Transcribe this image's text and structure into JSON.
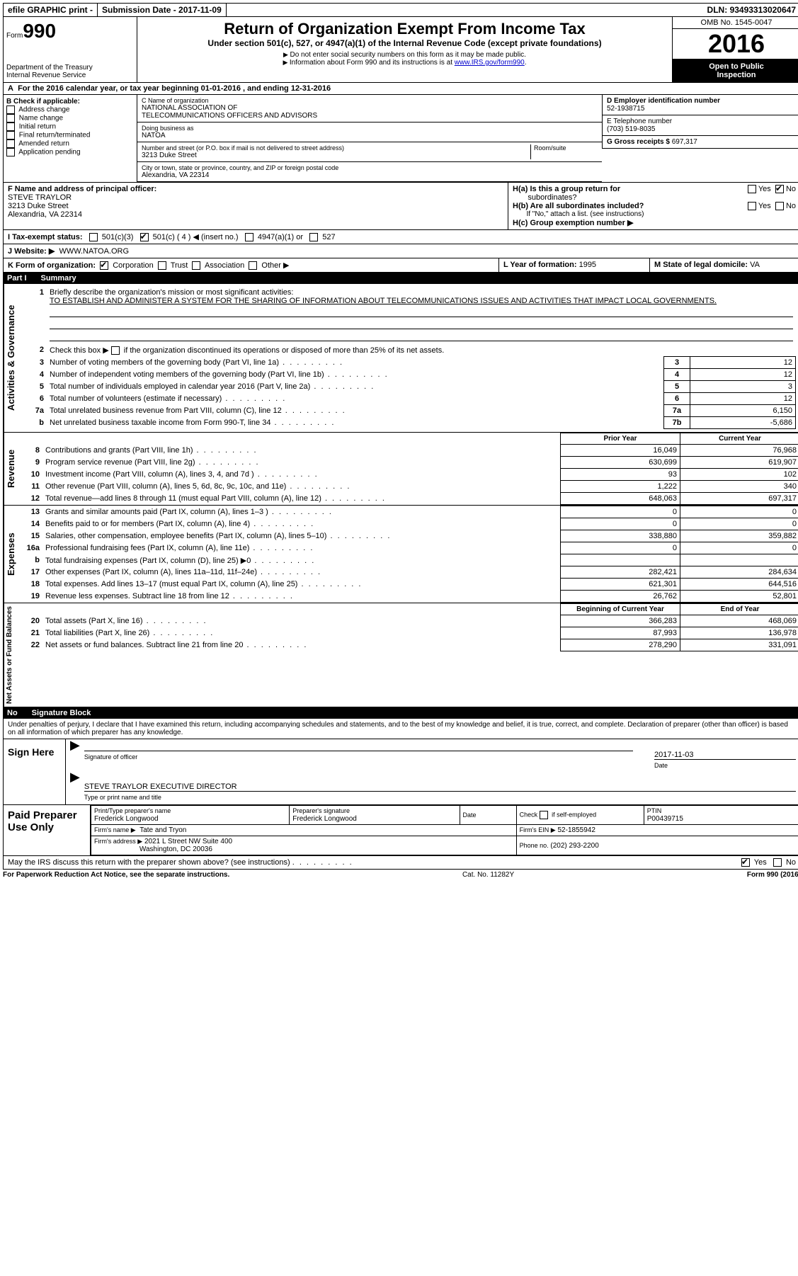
{
  "topbar": {
    "efile": "efile GRAPHIC print -",
    "submission_label": "Submission Date -",
    "submission_date": "2017-11-09",
    "dln_label": "DLN:",
    "dln": "93493313020647"
  },
  "header": {
    "form_label": "Form",
    "form_no": "990",
    "dept1": "Department of the Treasury",
    "dept2": "Internal Revenue Service",
    "title": "Return of Organization Exempt From Income Tax",
    "subtitle": "Under section 501(c), 527, or 4947(a)(1) of the Internal Revenue Code (except private foundations)",
    "note1": "Do not enter social security numbers on this form as it may be made public.",
    "note2": "Information about Form 990 and its instructions is at ",
    "note2_link": "www.IRS.gov/form990",
    "omb": "OMB No. 1545-0047",
    "year": "2016",
    "open1": "Open to Public",
    "open2": "Inspection"
  },
  "section_a": "For the 2016 calendar year, or tax year beginning 01-01-2016   , and ending 12-31-2016",
  "box_b": {
    "title": "B Check if applicable:",
    "items": [
      "Address change",
      "Name change",
      "Initial return",
      "Final return/terminated",
      "Amended return",
      "Application pending"
    ]
  },
  "box_c": {
    "label": "C Name of organization",
    "name1": "NATIONAL ASSOCIATION OF",
    "name2": "TELECOMMUNICATIONS OFFICERS AND ADVISORS",
    "dba_label": "Doing business as",
    "dba": "NATOA",
    "addr_label": "Number and street (or P.O. box if mail is not delivered to street address)",
    "room_label": "Room/suite",
    "addr": "3213 Duke Street",
    "city_label": "City or town, state or province, country, and ZIP or foreign postal code",
    "city": "Alexandria, VA  22314"
  },
  "box_d": {
    "label": "D Employer identification number",
    "value": "52-1938715"
  },
  "box_e": {
    "label": "E Telephone number",
    "value": "(703) 519-8035"
  },
  "box_g": {
    "label": "G Gross receipts $",
    "value": "697,317"
  },
  "box_f": {
    "label": "F  Name and address of principal officer:",
    "name": "STEVE TRAYLOR",
    "addr1": "3213 Duke Street",
    "addr2": "Alexandria, VA  22314"
  },
  "box_h": {
    "ha": "H(a)  Is this a group return for",
    "ha2": "subordinates?",
    "hb": "H(b)  Are all subordinates included?",
    "hb_note": "If \"No,\" attach a list. (see instructions)",
    "hc": "H(c)  Group exemption number ▶",
    "yes": "Yes",
    "no": "No"
  },
  "box_i": {
    "label": "I  Tax-exempt status:",
    "opt1": "501(c)(3)",
    "opt2": "501(c) ( 4 ) ◀ (insert no.)",
    "opt3": "4947(a)(1) or",
    "opt4": "527"
  },
  "box_j": {
    "label": "J  Website: ▶",
    "value": "WWW.NATOA.ORG"
  },
  "box_k": {
    "label": "K Form of organization:",
    "opts": [
      "Corporation",
      "Trust",
      "Association",
      "Other ▶"
    ]
  },
  "box_l": {
    "label": "L Year of formation:",
    "value": "1995"
  },
  "box_m": {
    "label": "M State of legal domicile:",
    "value": "VA"
  },
  "part1": {
    "no": "Part I",
    "title": "Summary",
    "line1_label": "Briefly describe the organization's mission or most significant activities:",
    "mission": "TO ESTABLISH AND ADMINISTER A SYSTEM FOR THE SHARING OF INFORMATION ABOUT TELECOMMUNICATIONS ISSUES AND ACTIVITIES THAT IMPACT LOCAL GOVERNMENTS.",
    "line2": "Check this box ▶     if the organization discontinued its operations or disposed of more than 25% of its net assets.",
    "gov_label": "Activities & Governance",
    "rev_label": "Revenue",
    "exp_label": "Expenses",
    "net_label": "Net Assets or Fund Balances",
    "rows_simple": [
      {
        "n": "3",
        "d": "Number of voting members of the governing body (Part VI, line 1a)",
        "box": "3",
        "v": "12"
      },
      {
        "n": "4",
        "d": "Number of independent voting members of the governing body (Part VI, line 1b)",
        "box": "4",
        "v": "12"
      },
      {
        "n": "5",
        "d": "Total number of individuals employed in calendar year 2016 (Part V, line 2a)",
        "box": "5",
        "v": "3"
      },
      {
        "n": "6",
        "d": "Total number of volunteers (estimate if necessary)",
        "box": "6",
        "v": "12"
      },
      {
        "n": "7a",
        "d": "Total unrelated business revenue from Part VIII, column (C), line 12",
        "box": "7a",
        "v": "6,150"
      },
      {
        "n": "b",
        "d": "Net unrelated business taxable income from Form 990-T, line 34",
        "box": "7b",
        "v": "-5,686"
      }
    ],
    "col_prior": "Prior Year",
    "col_curr": "Current Year",
    "rows_rev": [
      {
        "n": "8",
        "d": "Contributions and grants (Part VIII, line 1h)",
        "p": "16,049",
        "c": "76,968"
      },
      {
        "n": "9",
        "d": "Program service revenue (Part VIII, line 2g)",
        "p": "630,699",
        "c": "619,907"
      },
      {
        "n": "10",
        "d": "Investment income (Part VIII, column (A), lines 3, 4, and 7d )",
        "p": "93",
        "c": "102"
      },
      {
        "n": "11",
        "d": "Other revenue (Part VIII, column (A), lines 5, 6d, 8c, 9c, 10c, and 11e)",
        "p": "1,222",
        "c": "340"
      },
      {
        "n": "12",
        "d": "Total revenue—add lines 8 through 11 (must equal Part VIII, column (A), line 12)",
        "p": "648,063",
        "c": "697,317"
      }
    ],
    "rows_exp": [
      {
        "n": "13",
        "d": "Grants and similar amounts paid (Part IX, column (A), lines 1–3 )",
        "p": "0",
        "c": "0"
      },
      {
        "n": "14",
        "d": "Benefits paid to or for members (Part IX, column (A), line 4)",
        "p": "0",
        "c": "0"
      },
      {
        "n": "15",
        "d": "Salaries, other compensation, employee benefits (Part IX, column (A), lines 5–10)",
        "p": "338,880",
        "c": "359,882"
      },
      {
        "n": "16a",
        "d": "Professional fundraising fees (Part IX, column (A), line 11e)",
        "p": "0",
        "c": "0"
      },
      {
        "n": "b",
        "d": "Total fundraising expenses (Part IX, column (D), line 25) ▶0",
        "p": "",
        "c": "",
        "gray": true
      },
      {
        "n": "17",
        "d": "Other expenses (Part IX, column (A), lines 11a–11d, 11f–24e)",
        "p": "282,421",
        "c": "284,634"
      },
      {
        "n": "18",
        "d": "Total expenses. Add lines 13–17 (must equal Part IX, column (A), line 25)",
        "p": "621,301",
        "c": "644,516"
      },
      {
        "n": "19",
        "d": "Revenue less expenses. Subtract line 18 from line 12",
        "p": "26,762",
        "c": "52,801"
      }
    ],
    "col_beg": "Beginning of Current Year",
    "col_end": "End of Year",
    "rows_net": [
      {
        "n": "20",
        "d": "Total assets (Part X, line 16)",
        "p": "366,283",
        "c": "468,069"
      },
      {
        "n": "21",
        "d": "Total liabilities (Part X, line 26)",
        "p": "87,993",
        "c": "136,978"
      },
      {
        "n": "22",
        "d": "Net assets or fund balances. Subtract line 21 from line 20",
        "p": "278,290",
        "c": "331,091"
      }
    ]
  },
  "part2": {
    "no": "No",
    "title": "Signature Block",
    "decl": "Under penalties of perjury, I declare that I have examined this return, including accompanying schedules and statements, and to the best of my knowledge and belief, it is true, correct, and complete. Declaration of preparer (other than officer) is based on all information of which preparer has any knowledge.",
    "sign_here": "Sign Here",
    "sig_officer": "Signature of officer",
    "sig_date_label": "Date",
    "sig_date": "2017-11-03",
    "officer_name": "STEVE TRAYLOR  EXECUTIVE DIRECTOR",
    "type_name": "Type or print name and title",
    "paid": "Paid Preparer Use Only",
    "prep_name_label": "Print/Type preparer's name",
    "prep_name": "Frederick Longwood",
    "prep_sig_label": "Preparer's signature",
    "prep_sig": "Frederick Longwood",
    "date_label": "Date",
    "check_label": "Check      if self-employed",
    "ptin_label": "PTIN",
    "ptin": "P00439715",
    "firm_name_label": "Firm's name    ▶",
    "firm_name": "Tate and Tryon",
    "firm_ein_label": "Firm's EIN ▶",
    "firm_ein": "52-1855942",
    "firm_addr_label": "Firm's address ▶",
    "firm_addr1": "2021 L Street NW Suite 400",
    "firm_addr2": "Washington, DC  20036",
    "phone_label": "Phone no.",
    "phone": "(202) 293-2200",
    "discuss": "May the IRS discuss this return with the preparer shown above? (see instructions)",
    "yes": "Yes"
  },
  "footer": {
    "left": "For Paperwork Reduction Act Notice, see the separate instructions.",
    "mid": "Cat. No. 11282Y",
    "right": "Form 990 (2016)"
  }
}
